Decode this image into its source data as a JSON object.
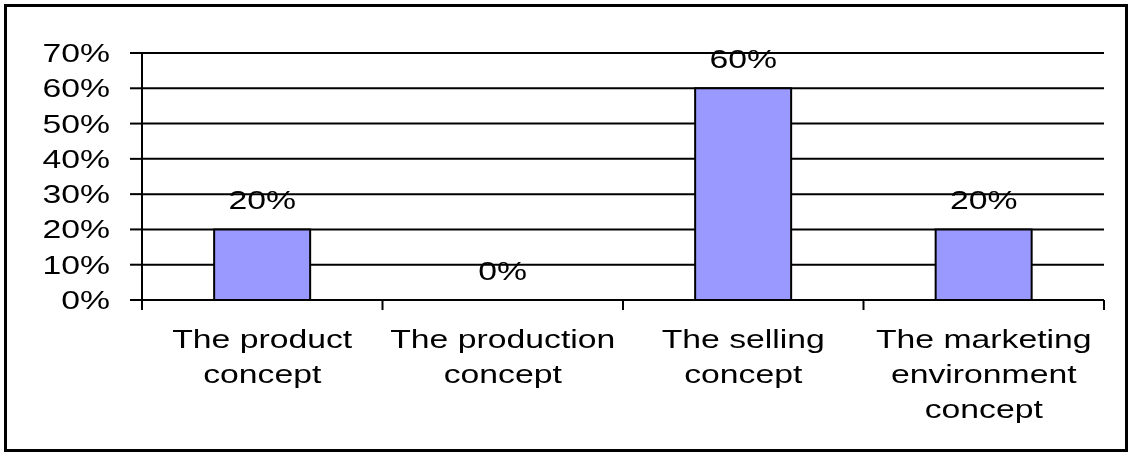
{
  "chart_data": {
    "type": "bar",
    "categories": [
      "The product concept",
      "The production concept",
      "The selling concept",
      "The marketing environment concept"
    ],
    "values": [
      20,
      0,
      60,
      20
    ],
    "color": "#9999ff",
    "value_labels": [
      "20%",
      "0%",
      "60%",
      "20%"
    ],
    "ylim": [
      0,
      70
    ],
    "yticks": [
      {
        "value": 0,
        "label": "0%"
      },
      {
        "value": 10,
        "label": "10%"
      },
      {
        "value": 20,
        "label": "20%"
      },
      {
        "value": 30,
        "label": "30%"
      },
      {
        "value": 40,
        "label": "40%"
      },
      {
        "value": 50,
        "label": "50%"
      },
      {
        "value": 60,
        "label": "60%"
      },
      {
        "value": 70,
        "label": "70%"
      }
    ],
    "grid": "y"
  }
}
